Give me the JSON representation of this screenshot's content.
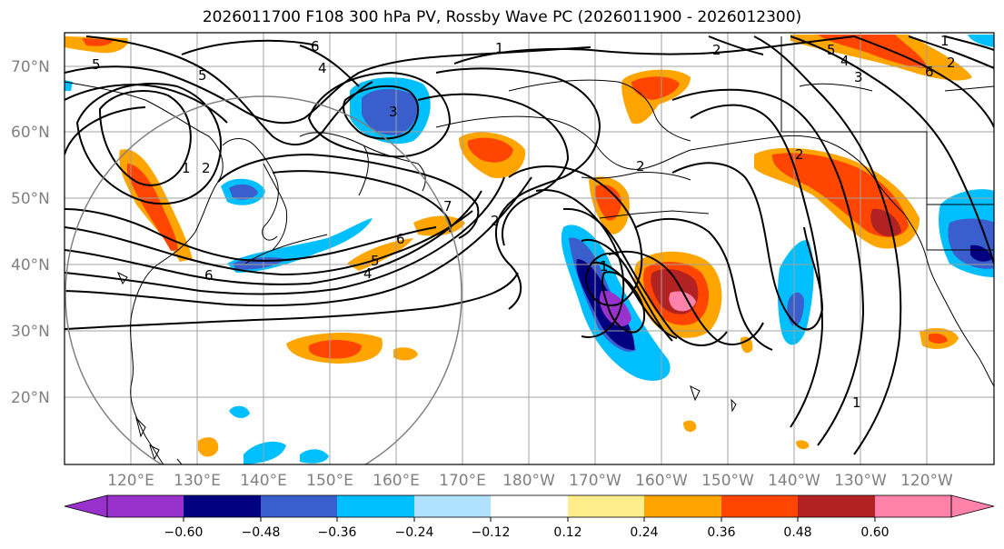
{
  "title": "2026011700 F108 300 hPa PV, Rossby Wave PC (2026011900 - 2026012300)",
  "lat_labels": [
    "70°N",
    "60°N",
    "50°N",
    "40°N",
    "30°N",
    "20°N"
  ],
  "lon_labels": [
    "120°E",
    "130°E",
    "140°E",
    "150°E",
    "160°E",
    "170°E",
    "180°W",
    "170°W",
    "160°W",
    "150°W",
    "140°W",
    "130°W",
    "120°W"
  ],
  "colorbar": {
    "ticks": [
      "−0.60",
      "−0.48",
      "−0.36",
      "−0.24",
      "−0.12",
      "0.12",
      "0.24",
      "0.36",
      "0.48",
      "0.60"
    ],
    "colors": [
      "#9932cc",
      "#000080",
      "#3a5fcd",
      "#00bfff",
      "#b0e2ff",
      "#ffffff",
      "#ffec8b",
      "#ffa500",
      "#ff4500",
      "#b22222",
      "#ff82ab"
    ]
  },
  "contour_labels": [
    "5",
    "6",
    "4",
    "5",
    "1",
    "2",
    "3",
    "1",
    "2",
    "2",
    "5",
    "4",
    "3",
    "6",
    "1",
    "2",
    "1",
    "6",
    "5",
    "4",
    "2",
    "7",
    "6",
    "2",
    "1"
  ],
  "colors": {
    "contour": "#000000",
    "grid": "#a0a0a0",
    "coast": "#000000",
    "circle": "#808080"
  }
}
